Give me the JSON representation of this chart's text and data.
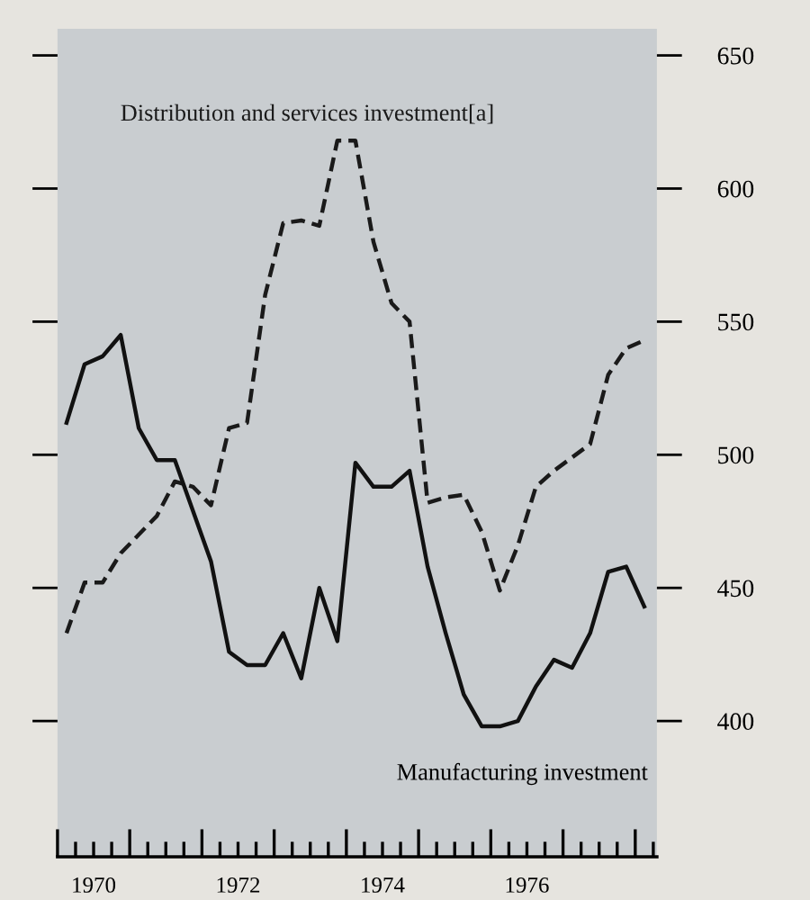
{
  "chart_data": {
    "type": "line",
    "x": [
      1970.125,
      1970.375,
      1970.625,
      1970.875,
      1971.125,
      1971.375,
      1971.625,
      1971.875,
      1972.125,
      1972.375,
      1972.625,
      1972.875,
      1973.125,
      1973.375,
      1973.625,
      1973.875,
      1974.125,
      1974.375,
      1974.625,
      1974.875,
      1975.125,
      1975.375,
      1975.625,
      1975.875,
      1976.125,
      1976.375,
      1976.625,
      1976.875,
      1977.125,
      1977.375,
      1977.625,
      1977.875,
      1978.125
    ],
    "series": [
      {
        "name": "Distribution and services investment[a]",
        "color": "#1a1a1a",
        "line_style": "dashed",
        "values": [
          433,
          452,
          452,
          463,
          470,
          477,
          490,
          488,
          481,
          510,
          512,
          560,
          587,
          588,
          586,
          618,
          618,
          580,
          557,
          550,
          482,
          484,
          485,
          471,
          449,
          466,
          488,
          494,
          499,
          504,
          530,
          540,
          543
        ]
      },
      {
        "name": "Manufacturing investment",
        "color": "#111111",
        "line_style": "solid",
        "values": [
          512,
          534,
          537,
          545,
          510,
          498,
          498,
          479,
          460,
          426,
          421,
          421,
          433,
          416,
          450,
          430,
          497,
          488,
          488,
          494,
          458,
          433,
          410,
          398,
          398,
          400,
          413,
          423,
          420,
          433,
          456,
          458,
          443
        ]
      }
    ],
    "xlim": [
      1970,
      1978.3
    ],
    "ylim": [
      349,
      660
    ],
    "yticks": [
      400,
      450,
      500,
      550,
      600,
      650
    ],
    "xticks": [
      {
        "value": 1970,
        "label": null
      },
      {
        "value": 1970.25,
        "label": null
      },
      {
        "value": 1970.5,
        "label": "1970"
      },
      {
        "value": 1970.75,
        "label": null
      },
      {
        "value": 1971,
        "label": null
      },
      {
        "value": 1971.25,
        "label": null
      },
      {
        "value": 1971.5,
        "label": null
      },
      {
        "value": 1971.75,
        "label": null
      },
      {
        "value": 1972,
        "label": null
      },
      {
        "value": 1972.25,
        "label": null
      },
      {
        "value": 1972.5,
        "label": "1972"
      },
      {
        "value": 1972.75,
        "label": null
      },
      {
        "value": 1973,
        "label": null
      },
      {
        "value": 1973.25,
        "label": null
      },
      {
        "value": 1973.5,
        "label": null
      },
      {
        "value": 1973.75,
        "label": null
      },
      {
        "value": 1974,
        "label": null
      },
      {
        "value": 1974.25,
        "label": null
      },
      {
        "value": 1974.5,
        "label": "1974"
      },
      {
        "value": 1974.75,
        "label": null
      },
      {
        "value": 1975,
        "label": null
      },
      {
        "value": 1975.25,
        "label": null
      },
      {
        "value": 1975.5,
        "label": null
      },
      {
        "value": 1975.75,
        "label": null
      },
      {
        "value": 1976,
        "label": null
      },
      {
        "value": 1976.25,
        "label": null
      },
      {
        "value": 1976.5,
        "label": "1976"
      },
      {
        "value": 1976.75,
        "label": null
      },
      {
        "value": 1977,
        "label": null
      },
      {
        "value": 1977.25,
        "label": null
      },
      {
        "value": 1977.5,
        "label": null
      },
      {
        "value": 1977.75,
        "label": null
      },
      {
        "value": 1978,
        "label": null
      },
      {
        "value": 1978.25,
        "label": null
      }
    ],
    "grid": false,
    "legend": false,
    "marker": "none"
  }
}
